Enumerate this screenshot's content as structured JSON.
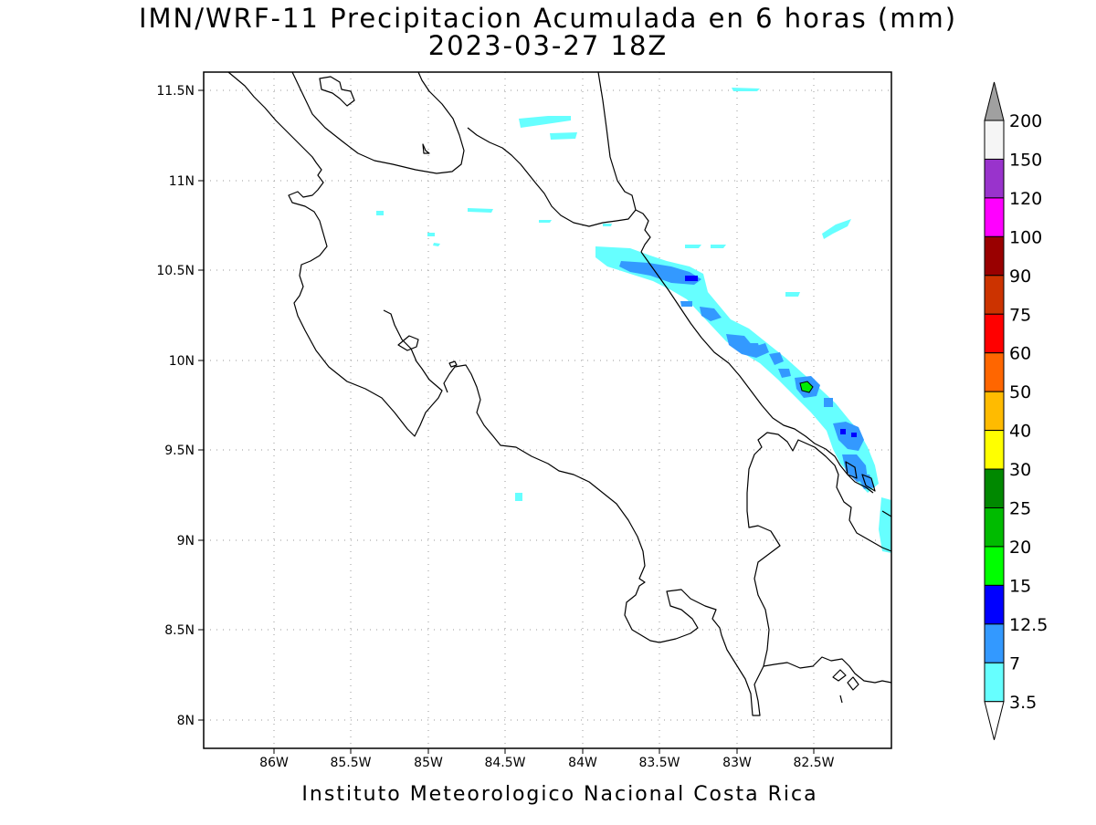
{
  "title": {
    "line1": "IMN/WRF-11 Precipitacion Acumulada en 6 horas (mm)",
    "line2": "2023-03-27 18Z"
  },
  "footer": "Instituto Meteorologico Nacional Costa Rica",
  "map": {
    "lon_range": [
      -86.45,
      -82.05
    ],
    "lat_range": [
      7.85,
      11.6
    ],
    "lat_ticks": [
      "11.5N",
      "11N",
      "10.5N",
      "10N",
      "9.5N",
      "9N",
      "8.5N",
      "8N"
    ],
    "lon_ticks": [
      "86W",
      "85.5W",
      "85W",
      "84.5W",
      "84W",
      "83.5W",
      "83W",
      "82.5W"
    ],
    "grid": "dotted",
    "coastline_color": "#000000"
  },
  "colorbar": {
    "labels": [
      "200",
      "150",
      "120",
      "100",
      "90",
      "75",
      "60",
      "50",
      "40",
      "30",
      "25",
      "20",
      "15",
      "12.5",
      "7",
      "3.5"
    ],
    "colors": [
      "#a0a0a0",
      "#f5f5f5",
      "#9933cc",
      "#ff00ff",
      "#990000",
      "#cc3300",
      "#ff0000",
      "#ff6600",
      "#ffbb00",
      "#ffff00",
      "#008800",
      "#00bb00",
      "#00ff00",
      "#0000ff",
      "#3399ff",
      "#66ffff",
      "#ffffff"
    ]
  }
}
